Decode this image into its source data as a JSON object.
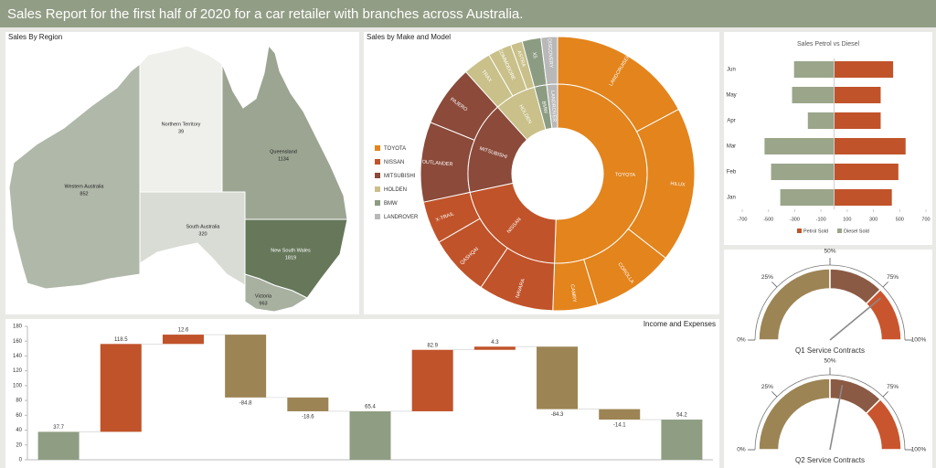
{
  "header": {
    "title": "Sales Report for the first half of 2020 for a car retailer with branches across Australia."
  },
  "chart_data": [
    {
      "type": "choropleth",
      "title": "Sales By Region",
      "regions": [
        {
          "name": "Western Australia",
          "value": 852
        },
        {
          "name": "Northern Territory",
          "value": 39
        },
        {
          "name": "Queensland",
          "value": 1134
        },
        {
          "name": "South Australia",
          "value": 320
        },
        {
          "name": "New South Wales",
          "value": 1819
        },
        {
          "name": "Victoria",
          "value": 963
        }
      ],
      "color_scale": [
        "#efefec",
        "#66775a"
      ]
    },
    {
      "type": "sunburst",
      "title": "Sales by Make and Model",
      "legend": "left",
      "groups": [
        {
          "name": "TOYOTA",
          "color": "#e3841c",
          "children": [
            {
              "name": "LANDCRUISER",
              "value": 62
            },
            {
              "name": "HILUX",
              "value": 66
            },
            {
              "name": "COROLLA",
              "value": 35
            },
            {
              "name": "CAMRY",
              "value": 19
            }
          ]
        },
        {
          "name": "NISSAN",
          "color": "#c0532a",
          "children": [
            {
              "name": "NAVARA",
              "value": 32
            },
            {
              "name": "QASHQAI",
              "value": 26
            },
            {
              "name": "X-TRAIL",
              "value": 18
            }
          ]
        },
        {
          "name": "MITSUBISHI",
          "color": "#8b4a3a",
          "children": [
            {
              "name": "OUTLANDER",
              "value": 34
            },
            {
              "name": "PAJERO",
              "value": 26
            }
          ]
        },
        {
          "name": "HOLDEN",
          "color": "#c9c08a",
          "children": [
            {
              "name": "TRAX",
              "value": 12
            },
            {
              "name": "COMMODORE",
              "value": 10
            },
            {
              "name": "ASTRA",
              "value": 5
            }
          ]
        },
        {
          "name": "BMW",
          "color": "#8c9c82",
          "children": [
            {
              "name": "X5",
              "value": 8
            }
          ]
        },
        {
          "name": "LANDROVER",
          "color": "#b8b8b8",
          "children": [
            {
              "name": "DISCOVERY",
              "value": 7
            }
          ]
        }
      ]
    },
    {
      "type": "bar",
      "orientation": "horizontal",
      "title": "Sales Petrol vs Diesel",
      "legend": "bottom",
      "categories": [
        "Jan",
        "Feb",
        "Mar",
        "Apr",
        "May",
        "Jun"
      ],
      "series": [
        {
          "name": "Petrol Sold",
          "color": "#c0532a",
          "values": [
            440,
            490,
            545,
            355,
            355,
            450
          ]
        },
        {
          "name": "Diesel Sold",
          "color": "#9aa58a",
          "values": [
            -410,
            -480,
            -530,
            -200,
            -320,
            -305
          ]
        }
      ],
      "xlim": [
        -700,
        700
      ],
      "xticks": [
        -700,
        -500,
        -300,
        -100,
        100,
        300,
        500,
        700
      ]
    },
    {
      "type": "gauge",
      "title": "Q1 Service Contracts",
      "value": 78,
      "lim": [
        0,
        100
      ],
      "ticks": [
        {
          "value": 0,
          "label": "0%"
        },
        {
          "value": 25,
          "label": "25%"
        },
        {
          "value": 50,
          "label": "50%"
        },
        {
          "value": 75,
          "label": "75%"
        },
        {
          "value": 100,
          "label": "100%"
        }
      ],
      "bands": [
        {
          "to": 50,
          "color": "#9c8455"
        },
        {
          "to": 75,
          "color": "#8b5a44"
        },
        {
          "to": 100,
          "color": "#c9552e"
        }
      ]
    },
    {
      "type": "gauge",
      "title": "Q2 Service Contracts",
      "value": 56,
      "lim": [
        0,
        100
      ],
      "ticks": [
        {
          "value": 0,
          "label": "0%"
        },
        {
          "value": 25,
          "label": "25%"
        },
        {
          "value": 50,
          "label": "50%"
        },
        {
          "value": 75,
          "label": "75%"
        },
        {
          "value": 100,
          "label": "100%"
        }
      ],
      "bands": [
        {
          "to": 50,
          "color": "#9c8455"
        },
        {
          "to": 75,
          "color": "#8b5a44"
        },
        {
          "to": 100,
          "color": "#c9552e"
        }
      ]
    },
    {
      "type": "waterfall",
      "title": "Income and Expenses",
      "categories": [
        null,
        null,
        null,
        null,
        null,
        null,
        null,
        null,
        null,
        null,
        null
      ],
      "values": [
        37.7,
        118.5,
        12.6,
        -84.8,
        -18.6,
        65.4,
        82.9,
        4.3,
        -84.3,
        -14.1,
        54.2
      ],
      "totals": [
        true,
        false,
        false,
        false,
        false,
        true,
        false,
        false,
        false,
        false,
        true
      ],
      "colors": {
        "total": "#8f9e83",
        "increase": "#c0532a",
        "decrease": "#9c8455"
      },
      "ylim": [
        0,
        180
      ],
      "yticks": [
        0,
        20,
        40,
        60,
        80,
        100,
        120,
        140,
        160,
        180
      ]
    }
  ]
}
